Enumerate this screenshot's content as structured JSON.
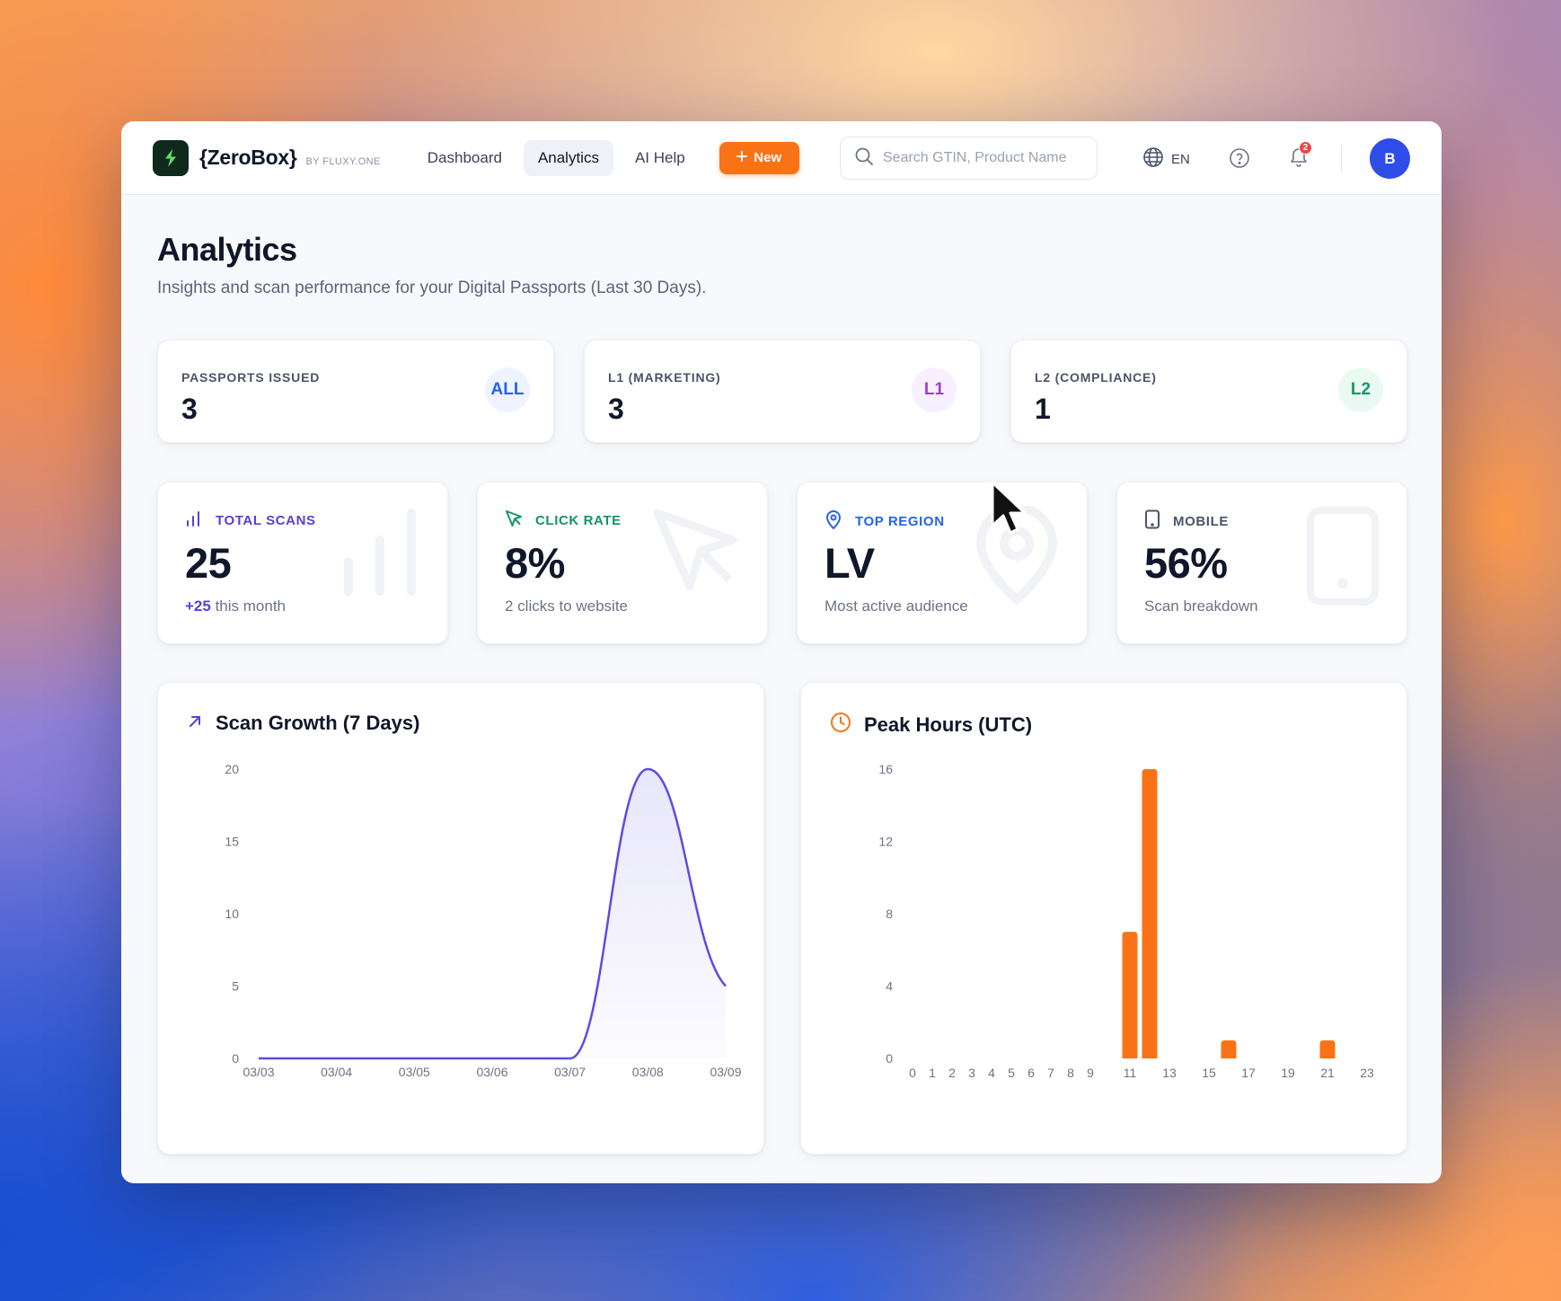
{
  "app": {
    "brand": "{ZeroBox}",
    "brand_by": "BY FLUXY.ONE",
    "nav": [
      {
        "label": "Dashboard"
      },
      {
        "label": "Analytics"
      },
      {
        "label": "AI Help"
      }
    ],
    "new_button": "New",
    "search_placeholder": "Search GTIN, Product Name",
    "language": "EN",
    "notification_count": "2",
    "avatar_initial": "B",
    "accent": "#f97316"
  },
  "page": {
    "title": "Analytics",
    "subtitle": "Insights and scan performance for your Digital Passports (Last 30 Days)."
  },
  "summary": [
    {
      "label": "PASSPORTS ISSUED",
      "value": "3",
      "badge": "ALL"
    },
    {
      "label": "L1 (MARKETING)",
      "value": "3",
      "badge": "L1"
    },
    {
      "label": "L2 (COMPLIANCE)",
      "value": "1",
      "badge": "L2"
    }
  ],
  "kpis": [
    {
      "label": "TOTAL SCANS",
      "value": "25",
      "delta": "+25",
      "sub": " this month",
      "icon": "bar-chart-icon",
      "color": "#5b3fd6"
    },
    {
      "label": "CLICK RATE",
      "value": "8%",
      "sub": "2 clicks to website",
      "icon": "cursor-click-icon",
      "color": "#15936a"
    },
    {
      "label": "TOP REGION",
      "value": "LV",
      "sub": "Most active audience",
      "icon": "map-pin-icon",
      "color": "#2563eb"
    },
    {
      "label": "MOBILE",
      "value": "56%",
      "sub": "Scan breakdown",
      "icon": "smartphone-icon",
      "color": "#4b5468"
    }
  ],
  "charts": {
    "growth_title": "Scan Growth (7 Days)",
    "peak_title": "Peak Hours (UTC)"
  },
  "chart_data": [
    {
      "type": "area",
      "title": "Scan Growth (7 Days)",
      "x": [
        "03/03",
        "03/04",
        "03/05",
        "03/06",
        "03/07",
        "03/08",
        "03/09"
      ],
      "values": [
        0,
        0,
        0,
        0,
        0,
        20,
        5
      ],
      "ylim": [
        0,
        20
      ],
      "yticks": [
        0,
        5,
        10,
        15,
        20
      ],
      "color": "#5b4ee0",
      "grid": false
    },
    {
      "type": "bar",
      "title": "Peak Hours (UTC)",
      "categories": [
        0,
        1,
        2,
        3,
        4,
        5,
        6,
        7,
        8,
        9,
        10,
        11,
        12,
        13,
        14,
        15,
        16,
        17,
        18,
        19,
        20,
        21,
        22,
        23
      ],
      "category_labels": [
        "0",
        "1",
        "2",
        "3",
        "4",
        "5",
        "6",
        "7",
        "8",
        "9",
        "11",
        "13",
        "15",
        "17",
        "19",
        "21",
        "23"
      ],
      "values": [
        0,
        0,
        0,
        0,
        0,
        0,
        0,
        0,
        0,
        0,
        0,
        7,
        16,
        0,
        0,
        0,
        1,
        0,
        0,
        0,
        0,
        1,
        0,
        0
      ],
      "ylim": [
        0,
        16
      ],
      "yticks": [
        0,
        4,
        8,
        12,
        16
      ],
      "color": "#f97316",
      "grid": false
    }
  ]
}
